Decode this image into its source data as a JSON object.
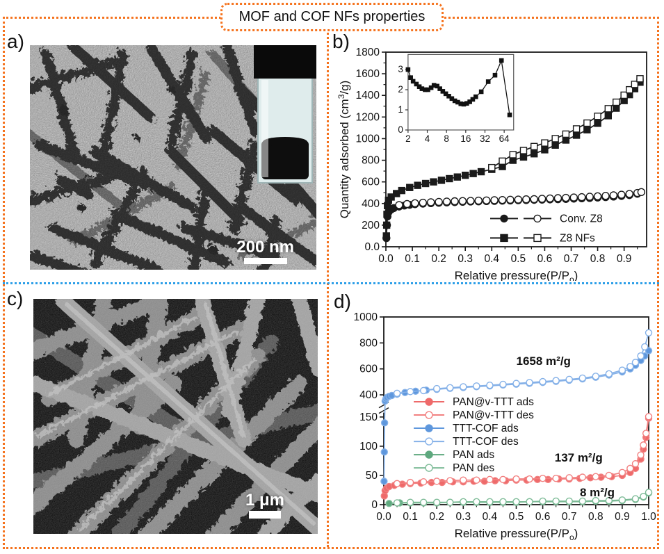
{
  "title": "MOF and COF NFs properties",
  "colors": {
    "frame_orange": "#f5731e",
    "divider_blue": "#2d9fe8",
    "tem_background": "#c6c6c6",
    "sem_background": "#141414"
  },
  "panels": {
    "a": {
      "label": "a)",
      "type": "TEM micrograph of MOF nanofibers",
      "scale_bar": "200 nm",
      "inset": "sample vial photo"
    },
    "b": {
      "label": "b)"
    },
    "c": {
      "label": "c)",
      "type": "SEM micrograph of COF nanofibers",
      "scale_bar": "1 μm"
    },
    "d": {
      "label": "d)"
    }
  },
  "chart_data": [
    {
      "id": "b",
      "type": "line",
      "xlabel": {
        "pre": "Relative pressure(P/P",
        "sub": "o",
        "post": ")"
      },
      "ylabel": {
        "pre": "Quantity adsorbed (cm",
        "sup": "3",
        "post": "/g)"
      },
      "xlim": [
        0,
        0.985
      ],
      "ylim": [
        0,
        1800
      ],
      "xticks": [
        0,
        0.1,
        0.2,
        0.3,
        0.4,
        0.5,
        0.6,
        0.7,
        0.8,
        0.9
      ],
      "xtick_labels": [
        "0.0",
        "0.1",
        "0.2",
        "0.3",
        "0.4",
        "0.5",
        "0.6",
        "0.7",
        "0.8",
        "0.9"
      ],
      "xminor": [
        0.05,
        0.15,
        0.25,
        0.35,
        0.45,
        0.55,
        0.65,
        0.75,
        0.85,
        0.95
      ],
      "yticks": [
        0,
        200,
        400,
        600,
        800,
        1000,
        1200,
        1400,
        1600,
        1800
      ],
      "ytick_labels": [
        "0.0",
        "200",
        "400",
        "600",
        "800",
        "1000",
        "1200",
        "1400",
        "1600",
        "1800"
      ],
      "yminor": [
        100,
        300,
        500,
        700,
        900,
        1100,
        1300,
        1500,
        1700
      ],
      "y_segments": [
        {
          "range": [
            0,
            1800
          ],
          "frac": [
            0,
            1
          ]
        }
      ],
      "series": [
        {
          "name": "Conv. Z8 ads",
          "marker": "circle",
          "filled": true,
          "color": "#1a1a1a",
          "ms": 5,
          "x": [
            0.002,
            0.004,
            0.006,
            0.01,
            0.02,
            0.03,
            0.05,
            0.07,
            0.09,
            0.11,
            0.14,
            0.17,
            0.2,
            0.23,
            0.26,
            0.29,
            0.32,
            0.35,
            0.38,
            0.41,
            0.44,
            0.47,
            0.5,
            0.53,
            0.56,
            0.59,
            0.62,
            0.65,
            0.68,
            0.71,
            0.74,
            0.77,
            0.8,
            0.83,
            0.86,
            0.89,
            0.92,
            0.95
          ],
          "y": [
            80,
            200,
            280,
            320,
            345,
            358,
            372,
            381,
            388,
            394,
            399,
            403,
            407,
            410,
            413,
            416,
            418,
            420,
            422,
            424,
            426,
            428,
            430,
            432,
            434,
            436,
            438,
            440,
            442,
            445,
            448,
            451,
            455,
            459,
            464,
            470,
            478,
            490
          ]
        },
        {
          "name": "Conv. Z8 des",
          "marker": "circle",
          "filled": false,
          "color": "#1a1a1a",
          "ms": 5,
          "x": [
            0.05,
            0.08,
            0.11,
            0.14,
            0.17,
            0.2,
            0.23,
            0.26,
            0.29,
            0.32,
            0.35,
            0.38,
            0.41,
            0.44,
            0.47,
            0.5,
            0.53,
            0.56,
            0.59,
            0.62,
            0.65,
            0.68,
            0.71,
            0.74,
            0.77,
            0.8,
            0.83,
            0.86,
            0.89,
            0.92,
            0.95,
            0.965
          ],
          "y": [
            386,
            396,
            403,
            408,
            412,
            415,
            418,
            421,
            423,
            425,
            427,
            429,
            431,
            433,
            435,
            437,
            439,
            441,
            444,
            447,
            450,
            453,
            456,
            459,
            463,
            467,
            471,
            476,
            482,
            489,
            498,
            506
          ]
        },
        {
          "name": "Z8 NFs ads",
          "marker": "square",
          "filled": true,
          "color": "#1a1a1a",
          "ms": 4.5,
          "x": [
            0.002,
            0.003,
            0.004,
            0.006,
            0.01,
            0.02,
            0.04,
            0.06,
            0.09,
            0.12,
            0.15,
            0.18,
            0.21,
            0.24,
            0.27,
            0.3,
            0.33,
            0.36,
            0.4,
            0.44,
            0.48,
            0.52,
            0.56,
            0.6,
            0.64,
            0.68,
            0.72,
            0.76,
            0.8,
            0.84,
            0.87,
            0.9,
            0.92,
            0.94,
            0.96
          ],
          "y": [
            100,
            200,
            300,
            380,
            430,
            460,
            492,
            520,
            548,
            568,
            585,
            600,
            615,
            630,
            645,
            661,
            677,
            694,
            716,
            742,
            800,
            830,
            860,
            897,
            940,
            987,
            1032,
            1082,
            1142,
            1212,
            1282,
            1352,
            1407,
            1462,
            1522
          ]
        },
        {
          "name": "Z8 NFs des",
          "marker": "square",
          "filled": false,
          "color": "#1a1a1a",
          "ms": 4.5,
          "x": [
            0.4,
            0.44,
            0.48,
            0.52,
            0.56,
            0.6,
            0.64,
            0.68,
            0.72,
            0.76,
            0.8,
            0.84,
            0.87,
            0.9,
            0.92,
            0.94,
            0.96
          ],
          "y": [
            732,
            792,
            852,
            890,
            927,
            960,
            1000,
            1042,
            1090,
            1144,
            1207,
            1277,
            1337,
            1402,
            1452,
            1502,
            1554
          ]
        }
      ],
      "legend": {
        "entries": [
          {
            "label": "Conv. Z8",
            "color": "#111111",
            "glyphs": [
              {
                "marker": "circle",
                "filled": true,
                "color": "#1a1a1a"
              },
              {
                "marker": "circle",
                "filled": false,
                "color": "#1a1a1a"
              }
            ]
          },
          {
            "label": "Z8 NFs",
            "color": "#111111",
            "glyphs": [
              {
                "marker": "square",
                "filled": true,
                "color": "#1a1a1a"
              },
              {
                "marker": "square",
                "filled": false,
                "color": "#1a1a1a"
              }
            ]
          }
        ]
      },
      "inset": {
        "xscale": "log2",
        "xlim": [
          2,
          90
        ],
        "ylim": [
          0,
          3.75
        ],
        "xticks": [
          2,
          4,
          8,
          16,
          32,
          64
        ],
        "yticks": [
          0,
          1,
          2,
          3
        ],
        "series": [
          {
            "name": "pore size distribution",
            "marker": "square",
            "filled": true,
            "color": "#111111",
            "x": [
              2,
              2.2,
              2.4,
              2.7,
              3.0,
              3.3,
              3.7,
              4.1,
              4.6,
              5.1,
              5.7,
              6.3,
              7.0,
              7.8,
              8.7,
              9.7,
              10.8,
              12.0,
              13.4,
              14.9,
              16.6,
              18.5,
              20.6,
              23,
              28,
              36,
              46,
              58,
              78
            ],
            "y": [
              3.0,
              2.6,
              2.42,
              2.28,
              2.15,
              2.05,
              2.0,
              2.0,
              2.1,
              2.22,
              2.18,
              2.05,
              1.92,
              1.8,
              1.68,
              1.56,
              1.45,
              1.38,
              1.3,
              1.28,
              1.32,
              1.4,
              1.52,
              1.65,
              1.9,
              2.4,
              2.72,
              3.45,
              0.75
            ]
          }
        ]
      },
      "annotations": []
    },
    {
      "id": "d",
      "type": "line",
      "xlabel": {
        "pre": "Relative pressure(P/P",
        "sub": "o",
        "post": ")"
      },
      "ylabel": null,
      "xlim": [
        0,
        1.0
      ],
      "xticks": [
        0,
        0.1,
        0.2,
        0.3,
        0.4,
        0.5,
        0.6,
        0.7,
        0.8,
        0.9,
        1.0
      ],
      "xtick_labels": [
        "0.0",
        "0.1",
        "0.2",
        "0.3",
        "0.4",
        "0.5",
        "0.6",
        "0.7",
        "0.8",
        "0.9",
        "1.0"
      ],
      "xminor": [
        0.05,
        0.15,
        0.25,
        0.35,
        0.45,
        0.55,
        0.65,
        0.75,
        0.85,
        0.95
      ],
      "yticks": [
        0,
        50,
        100,
        150,
        400,
        600,
        800,
        1000
      ],
      "ytick_labels": [
        "0",
        "50",
        "100",
        "150",
        "400",
        "600",
        "800",
        "1000"
      ],
      "yminor": [],
      "y_segments": [
        {
          "range": [
            0,
            150
          ],
          "frac": [
            0,
            0.467
          ]
        },
        {
          "range": [
            400,
            1000
          ],
          "frac": [
            0.585,
            1
          ]
        }
      ],
      "axis_break": true,
      "series": [
        {
          "name": "PAN ads",
          "marker": "circle",
          "filled": true,
          "color": "#7dbb97",
          "fillcolor": "#5ea87e",
          "ms": 4.5,
          "x": [
            0.02,
            0.06,
            0.1,
            0.15,
            0.2,
            0.25,
            0.3,
            0.35,
            0.4,
            0.45,
            0.5,
            0.55,
            0.6,
            0.65,
            0.7,
            0.75,
            0.8,
            0.85,
            0.9,
            0.95,
            0.98,
            1.0
          ],
          "y": [
            2,
            3,
            3,
            3,
            3,
            4,
            4,
            4,
            4,
            4,
            4,
            5,
            5,
            5,
            5,
            5,
            6,
            6,
            7,
            9,
            13,
            20
          ]
        },
        {
          "name": "PAN des",
          "marker": "circle",
          "filled": false,
          "color": "#7dbb97",
          "ms": 4.5,
          "x": [
            0.05,
            0.1,
            0.15,
            0.2,
            0.25,
            0.3,
            0.35,
            0.4,
            0.45,
            0.5,
            0.55,
            0.6,
            0.65,
            0.7,
            0.75,
            0.8,
            0.85,
            0.9,
            0.95,
            0.98,
            1.0
          ],
          "y": [
            3,
            4,
            4,
            4,
            4,
            5,
            5,
            5,
            5,
            5,
            5,
            6,
            6,
            6,
            6,
            7,
            7,
            8,
            10,
            14,
            21
          ]
        },
        {
          "name": "PAN@v-TTT ads",
          "marker": "circle",
          "filled": true,
          "color": "#f28080",
          "fillcolor": "#ee6a6a",
          "ms": 4.5,
          "x": [
            0.002,
            0.005,
            0.01,
            0.02,
            0.04,
            0.07,
            0.1,
            0.14,
            0.18,
            0.22,
            0.26,
            0.3,
            0.34,
            0.38,
            0.42,
            0.46,
            0.5,
            0.54,
            0.58,
            0.62,
            0.66,
            0.7,
            0.74,
            0.78,
            0.82,
            0.86,
            0.9,
            0.93,
            0.95,
            0.97,
            0.98,
            0.99,
            1.0
          ],
          "y": [
            15,
            24,
            28,
            31,
            33,
            35,
            36,
            37,
            38,
            38,
            39,
            39,
            40,
            40,
            41,
            41,
            42,
            42,
            43,
            43,
            44,
            44,
            45,
            46,
            47,
            48,
            50,
            55,
            62,
            78,
            95,
            115,
            148
          ]
        },
        {
          "name": "PAN@v-TTT des",
          "marker": "circle",
          "filled": false,
          "color": "#f28080",
          "ms": 4.5,
          "x": [
            0.05,
            0.1,
            0.15,
            0.2,
            0.25,
            0.3,
            0.35,
            0.4,
            0.45,
            0.5,
            0.55,
            0.6,
            0.65,
            0.7,
            0.75,
            0.8,
            0.85,
            0.9,
            0.93,
            0.95,
            0.97,
            0.98,
            0.99,
            1.0
          ],
          "y": [
            36,
            38,
            39,
            40,
            41,
            42,
            42,
            43,
            43,
            44,
            44,
            45,
            45,
            46,
            47,
            48,
            50,
            55,
            62,
            70,
            85,
            102,
            122,
            155
          ]
        },
        {
          "name": "TTT-COF ads",
          "marker": "circle",
          "filled": true,
          "color": "#85b1e8",
          "fillcolor": "#5e97dd",
          "ms": 4.5,
          "x": [
            0.001,
            0.002,
            0.003,
            0.005,
            0.008,
            0.012,
            0.02,
            0.03,
            0.05,
            0.08,
            0.12,
            0.16,
            0.2,
            0.25,
            0.3,
            0.35,
            0.4,
            0.45,
            0.5,
            0.55,
            0.6,
            0.65,
            0.7,
            0.75,
            0.8,
            0.85,
            0.9,
            0.93,
            0.95,
            0.97,
            0.985,
            1.0
          ],
          "y": [
            40,
            90,
            140,
            330,
            355,
            370,
            383,
            393,
            405,
            418,
            428,
            436,
            443,
            450,
            457,
            463,
            469,
            476,
            482,
            489,
            496,
            504,
            513,
            523,
            536,
            553,
            577,
            600,
            628,
            665,
            700,
            740
          ]
        },
        {
          "name": "TTT-COF des",
          "marker": "circle",
          "filled": false,
          "color": "#85b1e8",
          "ms": 4.5,
          "x": [
            0.05,
            0.1,
            0.15,
            0.2,
            0.25,
            0.3,
            0.35,
            0.4,
            0.45,
            0.5,
            0.55,
            0.6,
            0.65,
            0.7,
            0.75,
            0.8,
            0.85,
            0.9,
            0.93,
            0.95,
            0.97,
            0.985,
            1.0
          ],
          "y": [
            412,
            425,
            433,
            448,
            455,
            462,
            468,
            474,
            481,
            488,
            495,
            502,
            510,
            519,
            529,
            543,
            562,
            590,
            618,
            650,
            700,
            770,
            878
          ]
        }
      ],
      "legend": {
        "entries": [
          {
            "label": "PAN@v-TTT ads",
            "color": "#f2702d",
            "glyphs": [
              {
                "marker": "circle",
                "filled": true,
                "color": "#ee6a6a"
              }
            ]
          },
          {
            "label": "PAN@v-TTT des",
            "color": "#f2702d",
            "glyphs": [
              {
                "marker": "circle",
                "filled": false,
                "color": "#f28080"
              }
            ]
          },
          {
            "label": "TTT-COF ads",
            "color": "#1d5ed0",
            "glyphs": [
              {
                "marker": "circle",
                "filled": true,
                "color": "#5e97dd"
              }
            ]
          },
          {
            "label": "TTT-COF des",
            "color": "#1d5ed0",
            "glyphs": [
              {
                "marker": "circle",
                "filled": false,
                "color": "#85b1e8"
              }
            ]
          },
          {
            "label": "PAN ads",
            "color": "#21a04b",
            "glyphs": [
              {
                "marker": "circle",
                "filled": true,
                "color": "#5ea87e"
              }
            ]
          },
          {
            "label": "PAN des",
            "color": "#21a04b",
            "glyphs": [
              {
                "marker": "circle",
                "filled": false,
                "color": "#7dbb97"
              }
            ]
          }
        ]
      },
      "annotations": [
        {
          "text": "1658 m²/g",
          "color": "#1e9be8"
        },
        {
          "text": "137 m²/g",
          "color": "#f2702d"
        },
        {
          "text": "8 m²/g",
          "color": "#1e9e47"
        }
      ]
    }
  ]
}
